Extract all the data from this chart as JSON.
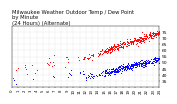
{
  "title": "Milwaukee Weather Outdoor Temp / Dew Point\nby Minute\n(24 Hours) (Alternate)",
  "title_fontsize": 3.8,
  "background_color": "#ffffff",
  "plot_bg_color": "#ffffff",
  "grid_color": "#bbbbbb",
  "temp_color": "#ff0000",
  "dew_color": "#0000ff",
  "marker_size": 0.5,
  "ylim": [
    30,
    80
  ],
  "xlim": [
    0,
    1440
  ],
  "ylabel_fontsize": 3.2,
  "xlabel_fontsize": 2.8,
  "yticks": [
    35,
    40,
    45,
    50,
    55,
    60,
    65,
    70,
    75
  ],
  "xtick_positions": [
    0,
    60,
    120,
    180,
    240,
    300,
    360,
    420,
    480,
    540,
    600,
    660,
    720,
    780,
    840,
    900,
    960,
    1020,
    1080,
    1140,
    1200,
    1260,
    1320,
    1380,
    1440
  ],
  "xtick_labels": [
    "0",
    "1",
    "2",
    "3",
    "4",
    "5",
    "6",
    "7",
    "8",
    "9",
    "10",
    "11",
    "12",
    "13",
    "14",
    "15",
    "16",
    "17",
    "18",
    "19",
    "20",
    "21",
    "22",
    "23",
    "24"
  ]
}
